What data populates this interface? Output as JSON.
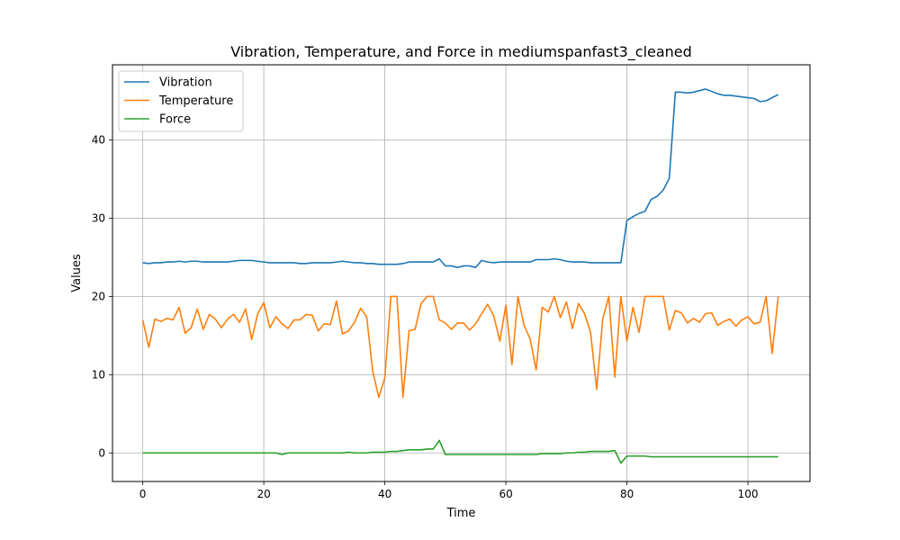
{
  "chart_data": {
    "type": "line",
    "title": "Vibration, Temperature, and Force in mediumspanfast3_cleaned",
    "xlabel": "Time",
    "ylabel": "Values",
    "xlim": [
      -5,
      110.25
    ],
    "ylim": [
      -3.65,
      49.6
    ],
    "xticks": [
      0,
      20,
      40,
      60,
      80,
      100
    ],
    "yticks": [
      0,
      10,
      20,
      30,
      40
    ],
    "grid": true,
    "legend_position": "top-left",
    "colors": {
      "Vibration": "#1f77b4",
      "Temperature": "#ff7f0e",
      "Force": "#2ca02c"
    },
    "series": [
      {
        "name": "Vibration",
        "values": [
          24.3,
          24.2,
          24.3,
          24.3,
          24.4,
          24.4,
          24.5,
          24.4,
          24.5,
          24.5,
          24.4,
          24.4,
          24.4,
          24.4,
          24.4,
          24.5,
          24.6,
          24.6,
          24.6,
          24.5,
          24.4,
          24.3,
          24.3,
          24.3,
          24.3,
          24.3,
          24.2,
          24.2,
          24.3,
          24.3,
          24.3,
          24.3,
          24.4,
          24.5,
          24.4,
          24.3,
          24.3,
          24.2,
          24.2,
          24.1,
          24.1,
          24.1,
          24.1,
          24.2,
          24.4,
          24.4,
          24.4,
          24.4,
          24.4,
          24.8,
          23.9,
          23.9,
          23.7,
          23.9,
          23.9,
          23.7,
          24.6,
          24.4,
          24.3,
          24.4,
          24.4,
          24.4,
          24.4,
          24.4,
          24.4,
          24.7,
          24.7,
          24.7,
          24.8,
          24.7,
          24.5,
          24.4,
          24.4,
          24.4,
          24.3,
          24.3,
          24.3,
          24.3,
          24.3,
          24.3,
          29.7,
          30.2,
          30.6,
          30.9,
          32.4,
          32.8,
          33.6,
          35.1,
          46.1,
          46.1,
          46.0,
          46.1,
          46.3,
          46.5,
          46.2,
          45.9,
          45.7,
          45.7,
          45.6,
          45.5,
          45.4,
          45.3,
          44.9,
          45.0,
          45.4,
          45.8
        ]
      },
      {
        "name": "Temperature",
        "values": [
          17.0,
          13.5,
          17.1,
          16.8,
          17.2,
          17.0,
          18.6,
          15.3,
          16.0,
          18.4,
          15.8,
          17.7,
          17.1,
          16.0,
          17.1,
          17.7,
          16.7,
          18.4,
          14.5,
          17.8,
          19.2,
          16.0,
          17.4,
          16.5,
          15.9,
          17.0,
          17.0,
          17.7,
          17.6,
          15.6,
          16.5,
          16.4,
          19.4,
          15.2,
          15.6,
          16.7,
          18.5,
          17.4,
          10.4,
          7.1,
          9.6,
          20.0,
          20.0,
          7.1,
          15.6,
          15.8,
          19.1,
          20.0,
          20.0,
          17.0,
          16.6,
          15.8,
          16.6,
          16.6,
          15.7,
          16.5,
          17.8,
          19.0,
          17.5,
          14.3,
          18.9,
          11.3,
          20.0,
          16.3,
          14.6,
          10.6,
          18.6,
          18.0,
          20.0,
          17.3,
          19.3,
          15.9,
          19.1,
          17.8,
          15.4,
          8.1,
          17.1,
          20.0,
          9.7,
          20.0,
          14.3,
          18.6,
          15.4,
          20.0,
          20.0,
          20.0,
          20.0,
          15.7,
          18.2,
          17.9,
          16.6,
          17.2,
          16.7,
          17.8,
          17.9,
          16.3,
          16.8,
          17.1,
          16.2,
          17.0,
          17.4,
          16.5,
          16.7,
          20.0,
          12.7,
          20.0
        ]
      },
      {
        "name": "Force",
        "values": [
          0.0,
          0.0,
          0.0,
          0.0,
          0.0,
          0.0,
          0.0,
          0.0,
          0.0,
          0.0,
          0.0,
          0.0,
          0.0,
          0.0,
          0.0,
          0.0,
          0.0,
          0.0,
          0.0,
          0.0,
          0.0,
          0.0,
          0.0,
          -0.2,
          0.0,
          0.0,
          0.0,
          0.0,
          0.0,
          0.0,
          0.0,
          0.0,
          0.0,
          0.0,
          0.1,
          0.0,
          0.0,
          0.0,
          0.1,
          0.1,
          0.1,
          0.2,
          0.2,
          0.3,
          0.4,
          0.4,
          0.4,
          0.5,
          0.5,
          1.6,
          -0.2,
          -0.2,
          -0.2,
          -0.2,
          -0.2,
          -0.2,
          -0.2,
          -0.2,
          -0.2,
          -0.2,
          -0.2,
          -0.2,
          -0.2,
          -0.2,
          -0.2,
          -0.2,
          -0.1,
          -0.1,
          -0.1,
          -0.1,
          0.0,
          0.0,
          0.1,
          0.1,
          0.2,
          0.2,
          0.2,
          0.2,
          0.3,
          -1.3,
          -0.4,
          -0.4,
          -0.4,
          -0.4,
          -0.5,
          -0.5,
          -0.5,
          -0.5,
          -0.5,
          -0.5,
          -0.5,
          -0.5,
          -0.5,
          -0.5,
          -0.5,
          -0.5,
          -0.5,
          -0.5,
          -0.5,
          -0.5,
          -0.5,
          -0.5,
          -0.5,
          -0.5,
          -0.5,
          -0.5
        ]
      }
    ]
  }
}
